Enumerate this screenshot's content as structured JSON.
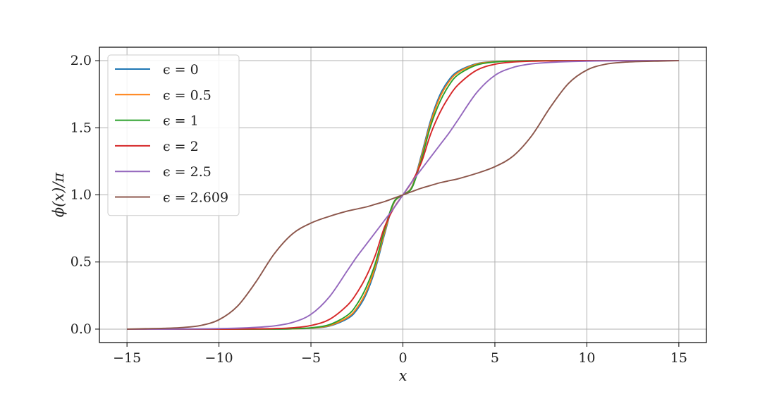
{
  "chart_data": {
    "type": "line",
    "title": "",
    "xlabel": "x",
    "ylabel": "ϕ(x)/π",
    "xlim": [
      -16.5,
      16.5
    ],
    "ylim": [
      -0.1,
      2.1
    ],
    "xticks": [
      -15,
      -10,
      -5,
      0,
      5,
      10,
      15
    ],
    "yticks": [
      0.0,
      0.5,
      1.0,
      1.5,
      2.0
    ],
    "xtick_labels": [
      "−15",
      "−10",
      "−5",
      "0",
      "5",
      "10",
      "15"
    ],
    "ytick_labels": [
      "0.0",
      "0.5",
      "1.0",
      "1.5",
      "2.0"
    ],
    "grid": true,
    "legend_position": "top-left",
    "x": [
      -15,
      -14,
      -13,
      -12,
      -11,
      -10,
      -9,
      -8,
      -7,
      -6,
      -5,
      -4,
      -3,
      -2.5,
      -2,
      -1.5,
      -1,
      -0.5,
      0,
      0.5,
      1,
      1.5,
      2,
      2.5,
      3,
      4,
      5,
      6,
      7,
      8,
      9,
      10,
      11,
      12,
      13,
      14,
      15
    ],
    "series": [
      {
        "name": "ϵ = 0",
        "color": "#1f77b4",
        "values": [
          0.0,
          0.0,
          0.0,
          0.0,
          0.0,
          0.0,
          0.0,
          0.0,
          0.0,
          0.002,
          0.007,
          0.023,
          0.079,
          0.144,
          0.259,
          0.448,
          0.706,
          0.936,
          1.0,
          1.064,
          1.294,
          1.552,
          1.741,
          1.856,
          1.921,
          1.977,
          1.993,
          1.998,
          2.0,
          2.0,
          2.0,
          2.0,
          2.0,
          2.0,
          2.0,
          2.0,
          2.0
        ]
      },
      {
        "name": "ϵ = 0.5",
        "color": "#ff7f0e",
        "values": [
          0.0,
          0.0,
          0.0,
          0.0,
          0.0,
          0.0,
          0.0,
          0.0,
          0.001,
          0.002,
          0.008,
          0.026,
          0.088,
          0.158,
          0.277,
          0.465,
          0.72,
          0.94,
          1.0,
          1.06,
          1.28,
          1.535,
          1.723,
          1.842,
          1.912,
          1.974,
          1.992,
          1.998,
          1.999,
          2.0,
          2.0,
          2.0,
          2.0,
          2.0,
          2.0,
          2.0,
          2.0
        ]
      },
      {
        "name": "ϵ = 1",
        "color": "#2ca02c",
        "values": [
          0.0,
          0.0,
          0.0,
          0.0,
          0.0,
          0.0,
          0.0,
          0.0,
          0.001,
          0.003,
          0.01,
          0.033,
          0.105,
          0.185,
          0.31,
          0.49,
          0.74,
          0.945,
          1.0,
          1.055,
          1.26,
          1.51,
          1.69,
          1.815,
          1.895,
          1.967,
          1.99,
          1.997,
          1.999,
          2.0,
          2.0,
          2.0,
          2.0,
          2.0,
          2.0,
          2.0,
          2.0
        ]
      },
      {
        "name": "ϵ = 2",
        "color": "#d62728",
        "values": [
          0.0,
          0.0,
          0.0,
          0.0,
          0.0,
          0.0,
          0.001,
          0.002,
          0.004,
          0.01,
          0.027,
          0.072,
          0.18,
          0.27,
          0.39,
          0.55,
          0.76,
          0.9,
          1.0,
          1.1,
          1.24,
          1.45,
          1.61,
          1.73,
          1.82,
          1.928,
          1.973,
          1.99,
          1.996,
          1.998,
          1.999,
          2.0,
          2.0,
          2.0,
          2.0,
          2.0,
          2.0
        ]
      },
      {
        "name": "ϵ = 2.5",
        "color": "#9467bd",
        "values": [
          0.0,
          0.0,
          0.0,
          0.001,
          0.002,
          0.004,
          0.007,
          0.013,
          0.024,
          0.05,
          0.11,
          0.24,
          0.44,
          0.54,
          0.63,
          0.72,
          0.81,
          0.9,
          1.0,
          1.1,
          1.19,
          1.28,
          1.37,
          1.46,
          1.56,
          1.76,
          1.89,
          1.95,
          1.976,
          1.987,
          1.993,
          1.996,
          1.998,
          1.999,
          2.0,
          2.0,
          2.0
        ]
      },
      {
        "name": "ϵ = 2.609",
        "color": "#8c564b",
        "values": [
          0.0,
          0.003,
          0.006,
          0.012,
          0.027,
          0.07,
          0.17,
          0.35,
          0.56,
          0.71,
          0.79,
          0.84,
          0.88,
          0.895,
          0.91,
          0.93,
          0.95,
          0.975,
          1.0,
          1.025,
          1.05,
          1.07,
          1.09,
          1.105,
          1.12,
          1.16,
          1.21,
          1.29,
          1.44,
          1.65,
          1.83,
          1.93,
          1.973,
          1.988,
          1.994,
          1.997,
          2.0
        ]
      }
    ]
  }
}
